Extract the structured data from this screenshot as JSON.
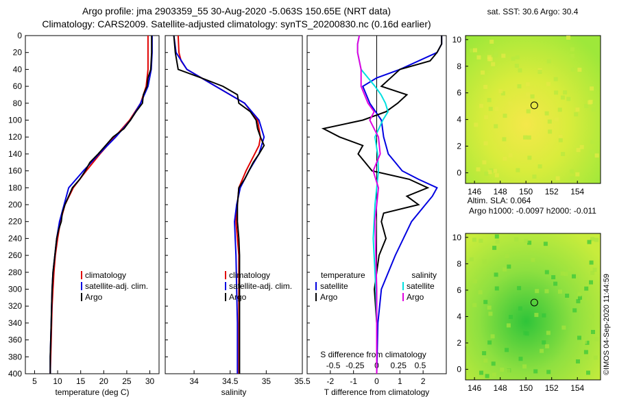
{
  "header": {
    "line1": "Argo profile: jma 2903359_55 30-Aug-2020 -5.063S 150.65E (NRT data)",
    "line2": "Climatology: CARS2009. Satellite-adjusted climatology: synTS_20200830.nc (0.16d earlier)"
  },
  "credit": "©IMOS 04-Sep-2020 11:44:59",
  "colors": {
    "climatology": "#e00000",
    "satellite": "#0000e0",
    "argo": "#000000",
    "sat_salinity": "#00e0e0",
    "argo_salinity": "#e000e0"
  },
  "chart_data": [
    {
      "type": "line",
      "name": "temperature-panel",
      "xlabel": "temperature (deg C)",
      "ylabel": "",
      "xlim": [
        3,
        32
      ],
      "ylim": [
        400,
        0
      ],
      "xticks": [
        5,
        10,
        15,
        20,
        25,
        30
      ],
      "yticks": [
        0,
        20,
        40,
        60,
        80,
        100,
        120,
        140,
        160,
        180,
        200,
        220,
        240,
        260,
        280,
        300,
        320,
        340,
        360,
        380,
        400
      ],
      "legend": [
        "climatology",
        "satellite-adj. clim.",
        "Argo"
      ],
      "series": [
        {
          "name": "climatology",
          "color": "#e00000",
          "depth": [
            0,
            20,
            40,
            60,
            80,
            100,
            120,
            140,
            160,
            180,
            200,
            220,
            240,
            260,
            280,
            300,
            320,
            340,
            360,
            380,
            400
          ],
          "values": [
            29.6,
            29.6,
            29.6,
            29.2,
            28.0,
            25.6,
            22.4,
            19.2,
            16.2,
            13.4,
            11.6,
            10.6,
            10.0,
            9.5,
            9.2,
            9.0,
            8.8,
            8.7,
            8.6,
            8.5,
            8.4
          ]
        },
        {
          "name": "satellite-adj. clim.",
          "color": "#0000e0",
          "depth": [
            0,
            20,
            40,
            60,
            80,
            100,
            120,
            140,
            160,
            180,
            200,
            220,
            240,
            260,
            280,
            300,
            320,
            340,
            360,
            380,
            400
          ],
          "values": [
            30.5,
            30.5,
            30.3,
            29.6,
            28.0,
            25.8,
            22.6,
            19.0,
            15.6,
            12.4,
            11.4,
            10.4,
            9.8,
            9.4,
            9.0,
            8.8,
            8.7,
            8.6,
            8.5,
            8.4,
            8.4
          ]
        },
        {
          "name": "Argo",
          "color": "#000000",
          "depth": [
            0,
            20,
            40,
            50,
            60,
            70,
            80,
            90,
            100,
            110,
            120,
            130,
            140,
            150,
            160,
            170,
            180,
            190,
            200,
            210,
            220,
            230,
            240,
            260,
            280,
            300,
            320,
            340,
            360,
            380,
            400
          ],
          "values": [
            30.4,
            30.4,
            30.2,
            29.6,
            29.4,
            28.6,
            28.4,
            27.0,
            25.8,
            24.4,
            22.0,
            20.4,
            18.8,
            17.0,
            16.0,
            14.8,
            13.2,
            12.4,
            11.6,
            11.0,
            10.8,
            10.2,
            9.8,
            9.4,
            9.0,
            8.8,
            8.7,
            8.6,
            8.5,
            8.4,
            8.4
          ]
        }
      ]
    },
    {
      "type": "line",
      "name": "salinity-panel",
      "xlabel": "salinity",
      "ylabel": "",
      "xlim": [
        33.6,
        35.5
      ],
      "ylim": [
        400,
        0
      ],
      "xticks": [
        34,
        34.5,
        35,
        35.5
      ],
      "legend": [
        "climatology",
        "satellite-adj. clim.",
        "Argo"
      ],
      "series": [
        {
          "name": "climatology",
          "color": "#e00000",
          "depth": [
            0,
            20,
            30,
            40,
            60,
            80,
            100,
            120,
            130,
            140,
            160,
            180,
            200,
            220,
            240,
            260,
            300,
            340,
            400
          ],
          "values": [
            33.78,
            33.79,
            33.82,
            33.9,
            34.3,
            34.7,
            34.88,
            34.92,
            34.9,
            34.84,
            34.72,
            34.62,
            34.6,
            34.58,
            34.6,
            34.62,
            34.62,
            34.62,
            34.62
          ]
        },
        {
          "name": "satellite-adj. clim.",
          "color": "#0000e0",
          "depth": [
            0,
            20,
            40,
            60,
            80,
            100,
            120,
            140,
            160,
            180,
            200,
            220,
            240,
            260,
            300,
            340,
            400
          ],
          "values": [
            33.72,
            33.75,
            33.9,
            34.3,
            34.7,
            34.9,
            34.97,
            34.9,
            34.76,
            34.64,
            34.59,
            34.56,
            34.57,
            34.58,
            34.59,
            34.6,
            34.6
          ]
        },
        {
          "name": "Argo",
          "color": "#000000",
          "depth": [
            0,
            20,
            40,
            50,
            60,
            70,
            80,
            90,
            100,
            110,
            120,
            130,
            140,
            150,
            160,
            170,
            180,
            200,
            220,
            240,
            260,
            280,
            300,
            340,
            400
          ],
          "values": [
            33.72,
            33.74,
            33.78,
            34.1,
            34.4,
            34.6,
            34.62,
            34.78,
            34.86,
            34.88,
            34.92,
            34.97,
            34.9,
            34.82,
            34.76,
            34.7,
            34.62,
            34.6,
            34.6,
            34.62,
            34.63,
            34.63,
            34.63,
            34.63,
            34.63
          ]
        }
      ]
    },
    {
      "type": "line",
      "name": "difference-panel",
      "xlabel": "T difference from climatology",
      "ylabel": "",
      "xlim": [
        -3,
        3
      ],
      "ylim": [
        400,
        0
      ],
      "xticks": [
        -2,
        -1,
        0,
        1,
        2
      ],
      "xlabel2": "S difference from climatology",
      "xticks2": [
        -0.5,
        -0.25,
        0,
        0.25,
        0.5
      ],
      "xticks2_labels": [
        "-0.5",
        "-0.25",
        "0",
        "0.25",
        "0.5"
      ],
      "legend_left_title": "temperature",
      "legend_right_title": "salinity",
      "legend_left": [
        "satellite",
        "Argo"
      ],
      "legend_right": [
        "satellite",
        "Argo"
      ],
      "series": [
        {
          "name": "T satellite",
          "color": "#0000e0",
          "depth": [
            0,
            10,
            20,
            40,
            50,
            60,
            80,
            100,
            120,
            140,
            150,
            160,
            170,
            180,
            190,
            200,
            220,
            260,
            300,
            340,
            400
          ],
          "values": [
            2.8,
            2.8,
            2.6,
            1.0,
            0.0,
            -0.6,
            -0.3,
            0.2,
            0.3,
            0.5,
            0.8,
            1.1,
            1.8,
            2.6,
            2.4,
            2.1,
            1.5,
            0.8,
            0.2,
            0.05,
            0.0
          ]
        },
        {
          "name": "T Argo",
          "color": "#000000",
          "depth": [
            0,
            10,
            20,
            30,
            40,
            50,
            60,
            70,
            80,
            90,
            100,
            110,
            120,
            130,
            140,
            150,
            160,
            170,
            180,
            190,
            200,
            210,
            220,
            240,
            260,
            280,
            300,
            340,
            400
          ],
          "values": [
            2.8,
            2.8,
            2.6,
            2.3,
            1.0,
            0.6,
            0.2,
            1.3,
            0.9,
            0.4,
            -0.6,
            -2.3,
            -1.6,
            -0.6,
            -0.8,
            -0.5,
            -0.2,
            1.4,
            2.2,
            1.3,
            1.8,
            0.3,
            0.2,
            0.4,
            0.1,
            0.0,
            -0.1,
            0.0,
            0.0
          ]
        },
        {
          "name": "S satellite",
          "color": "#00e0e0",
          "depth": [
            0,
            10,
            20,
            40,
            60,
            70,
            80,
            90,
            100,
            120,
            140,
            160,
            180,
            200,
            220,
            240,
            260,
            280,
            300,
            340,
            400
          ],
          "values": [
            -0.2,
            -0.22,
            -0.22,
            -0.18,
            -0.02,
            0.05,
            0.1,
            0.13,
            0.07,
            -0.02,
            0.01,
            0.02,
            0.0,
            -0.02,
            -0.03,
            -0.04,
            -0.03,
            -0.02,
            -0.01,
            0.0,
            0.0
          ]
        },
        {
          "name": "S Argo",
          "color": "#e000e0",
          "depth": [
            0,
            10,
            20,
            40,
            60,
            70,
            80,
            90,
            100,
            110,
            120,
            140,
            160,
            180,
            200,
            220,
            260,
            300,
            340,
            400
          ],
          "values": [
            -0.2,
            -0.22,
            -0.22,
            -0.18,
            -0.18,
            -0.14,
            -0.1,
            -0.03,
            -0.08,
            -0.03,
            0.02,
            0.04,
            -0.04,
            0.02,
            0.0,
            -0.02,
            -0.01,
            0.0,
            0.0,
            0.0
          ]
        }
      ]
    },
    {
      "type": "heatmap",
      "name": "sst-map",
      "title": "sat. SST: 30.6 Argo: 30.4",
      "xlim": [
        145.3,
        155.8
      ],
      "ylim": [
        -0.8,
        10.3
      ],
      "xticks": [
        146,
        148,
        150,
        152,
        154
      ],
      "yticks": [
        0,
        2,
        4,
        6,
        8,
        10
      ],
      "marker": [
        150.65,
        5.063
      ]
    },
    {
      "type": "heatmap",
      "name": "sla-map",
      "title": "Altim. SLA: 0.064",
      "subtitle": "Argo h1000: -0.0097 h2000: -0.011",
      "xlim": [
        145.3,
        155.8
      ],
      "ylim": [
        -0.8,
        10.3
      ],
      "xticks": [
        146,
        148,
        150,
        152,
        154
      ],
      "yticks": [
        0,
        2,
        4,
        6,
        8,
        10
      ],
      "marker": [
        150.65,
        5.063
      ]
    }
  ]
}
